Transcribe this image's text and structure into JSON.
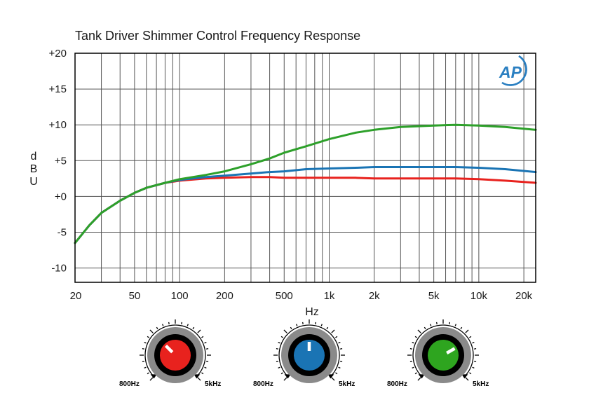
{
  "chart_data": {
    "type": "line",
    "title": "Tank Driver Shimmer Control Frequency Response",
    "xlabel": "Hz",
    "ylabel": "dBU",
    "xscale": "log",
    "xlim": [
      20,
      24000
    ],
    "ylim": [
      -12,
      20
    ],
    "grid": true,
    "y_ticks": [
      {
        "value": 20,
        "label": "+20"
      },
      {
        "value": 15,
        "label": "+15"
      },
      {
        "value": 10,
        "label": "+10"
      },
      {
        "value": 5,
        "label": "+5"
      },
      {
        "value": 0,
        "label": "+0"
      },
      {
        "value": -5,
        "label": "-5"
      },
      {
        "value": -10,
        "label": "-10"
      }
    ],
    "x_ticks": [
      {
        "value": 20,
        "label": "20"
      },
      {
        "value": 50,
        "label": "50"
      },
      {
        "value": 100,
        "label": "100"
      },
      {
        "value": 200,
        "label": "200"
      },
      {
        "value": 500,
        "label": "500"
      },
      {
        "value": 1000,
        "label": "1k"
      },
      {
        "value": 2000,
        "label": "2k"
      },
      {
        "value": 5000,
        "label": "5k"
      },
      {
        "value": 10000,
        "label": "10k"
      },
      {
        "value": 20000,
        "label": "20k"
      }
    ],
    "series": [
      {
        "name": "red",
        "color": "#e8221e",
        "x": [
          20,
          25,
          30,
          40,
          50,
          60,
          80,
          100,
          150,
          200,
          300,
          400,
          500,
          700,
          1000,
          1500,
          2000,
          3000,
          5000,
          7000,
          10000,
          15000,
          24000
        ],
        "y": [
          -6.5,
          -4,
          -2.3,
          -0.6,
          0.5,
          1.2,
          1.9,
          2.2,
          2.5,
          2.6,
          2.7,
          2.7,
          2.6,
          2.6,
          2.6,
          2.6,
          2.5,
          2.5,
          2.5,
          2.5,
          2.4,
          2.2,
          1.9
        ]
      },
      {
        "name": "blue",
        "color": "#1a74b4",
        "x": [
          20,
          25,
          30,
          40,
          50,
          60,
          80,
          100,
          150,
          200,
          300,
          400,
          500,
          700,
          1000,
          1500,
          2000,
          3000,
          5000,
          7000,
          10000,
          15000,
          24000
        ],
        "y": [
          -6.5,
          -4,
          -2.3,
          -0.6,
          0.5,
          1.2,
          1.9,
          2.3,
          2.7,
          2.9,
          3.2,
          3.4,
          3.5,
          3.8,
          3.9,
          4.0,
          4.1,
          4.1,
          4.1,
          4.1,
          4.0,
          3.8,
          3.4
        ]
      },
      {
        "name": "green",
        "color": "#2da02a",
        "x": [
          20,
          25,
          30,
          40,
          50,
          60,
          80,
          100,
          150,
          200,
          300,
          400,
          500,
          700,
          1000,
          1500,
          2000,
          3000,
          5000,
          7000,
          10000,
          15000,
          24000
        ],
        "y": [
          -6.5,
          -4,
          -2.3,
          -0.6,
          0.5,
          1.2,
          1.9,
          2.4,
          3.0,
          3.5,
          4.5,
          5.3,
          6.1,
          7.0,
          8.0,
          8.9,
          9.3,
          9.7,
          9.9,
          10.0,
          9.9,
          9.7,
          9.3
        ]
      }
    ]
  },
  "knobs": [
    {
      "name": "red-knob",
      "color": "#e8221e",
      "min_label": "800Hz",
      "max_label": "5kHz",
      "angle_deg": 225
    },
    {
      "name": "blue-knob",
      "color": "#1a74b4",
      "min_label": "800Hz",
      "max_label": "5kHz",
      "angle_deg": 270
    },
    {
      "name": "green-knob",
      "color": "#2ea51f",
      "min_label": "800Hz",
      "max_label": "5kHz",
      "angle_deg": 330
    }
  ],
  "logo": {
    "text": "AP",
    "color": "#2a7fc1"
  }
}
